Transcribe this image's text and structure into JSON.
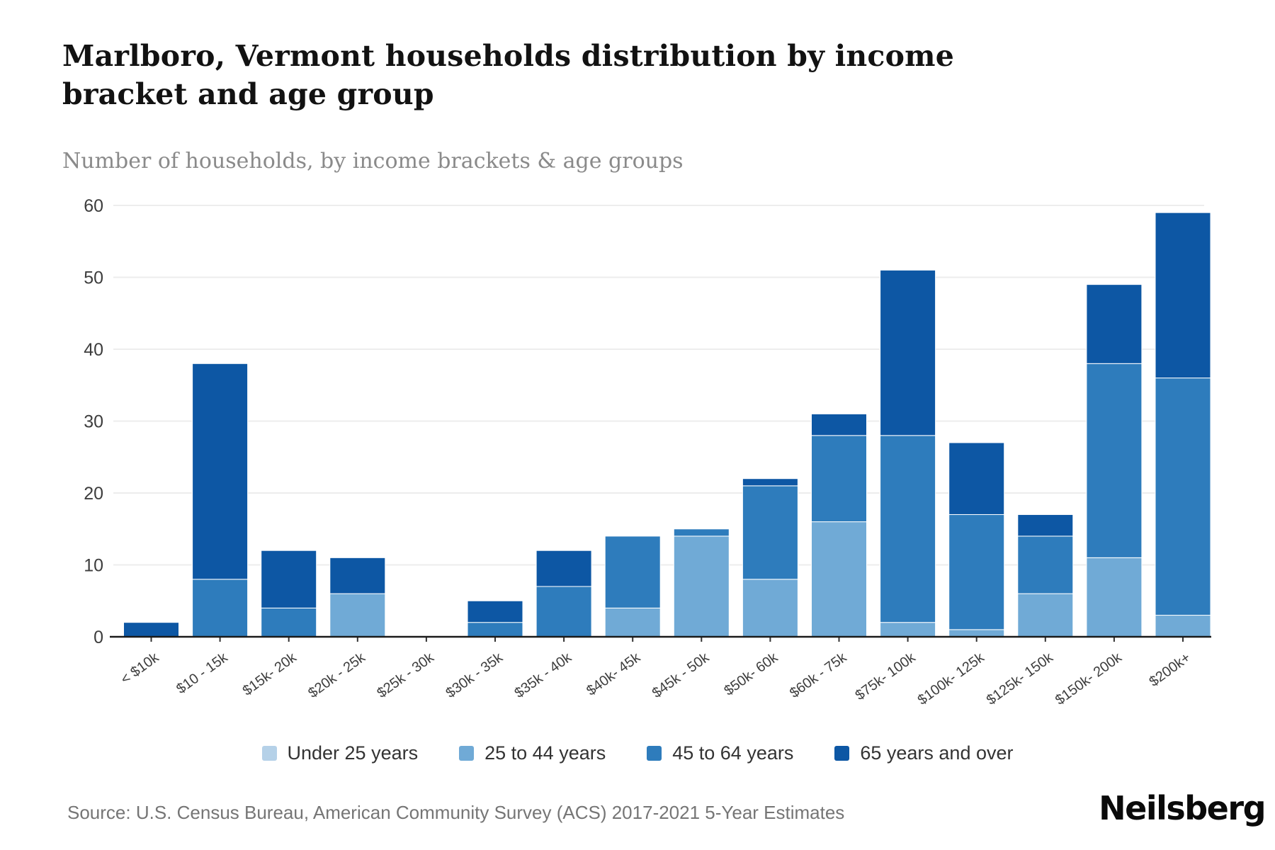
{
  "header": {
    "title": "Marlboro, Vermont households distribution by income bracket and age group",
    "subtitle": "Number of households, by income brackets & age groups"
  },
  "footer": {
    "source": "Source: U.S. Census Bureau, American Community Survey (ACS) 2017-2021 5-Year Estimates",
    "logo": "Neilsberg"
  },
  "colors": {
    "under_25": "#b5d1e8",
    "age_25_44": "#70aad6",
    "age_45_64": "#2e7cbc",
    "age_65_over": "#0d57a4",
    "grid": "#ededed",
    "axis_line": "#1a1a1a",
    "axis_text": "#3d3d3d",
    "tick": "#333333"
  },
  "chart_data": {
    "type": "bar",
    "stacked": true,
    "title": "Marlboro, Vermont households distribution by income bracket and age group",
    "subtitle": "Number of households, by income brackets & age groups",
    "xlabel": "",
    "ylabel": "",
    "ylim": [
      0,
      60
    ],
    "yticks": [
      0,
      10,
      20,
      30,
      40,
      50,
      60
    ],
    "grid": "horizontal",
    "legend_position": "bottom",
    "categories": [
      "< $10k",
      "$10 - 15k",
      "$15k- 20k",
      "$20k - 25k",
      "$25k - 30k",
      "$30k - 35k",
      "$35k - 40k",
      "$40k- 45k",
      "$45k - 50k",
      "$50k- 60k",
      "$60k - 75k",
      "$75k- 100k",
      "$100k- 125k",
      "$125k- 150k",
      "$150k- 200k",
      "$200k+"
    ],
    "series": [
      {
        "name": "Under 25 years",
        "color": "#b5d1e8",
        "values": [
          0,
          0,
          0,
          0,
          0,
          0,
          0,
          0,
          0,
          0,
          0,
          0,
          0,
          0,
          0,
          0
        ]
      },
      {
        "name": "25 to 44 years",
        "color": "#70aad6",
        "values": [
          0,
          0,
          0,
          6,
          0,
          0,
          0,
          4,
          14,
          8,
          16,
          2,
          1,
          6,
          11,
          3
        ]
      },
      {
        "name": "45 to 64 years",
        "color": "#2e7cbc",
        "values": [
          0,
          8,
          4,
          0,
          0,
          2,
          7,
          10,
          1,
          13,
          12,
          26,
          16,
          8,
          27,
          33
        ]
      },
      {
        "name": "65 years and over",
        "color": "#0d57a4",
        "values": [
          2,
          30,
          8,
          5,
          0,
          3,
          5,
          0,
          0,
          1,
          3,
          23,
          10,
          3,
          11,
          23
        ]
      }
    ],
    "totals": [
      2,
      38,
      12,
      11,
      0,
      5,
      12,
      14,
      15,
      22,
      31,
      51,
      27,
      17,
      49,
      59
    ]
  }
}
